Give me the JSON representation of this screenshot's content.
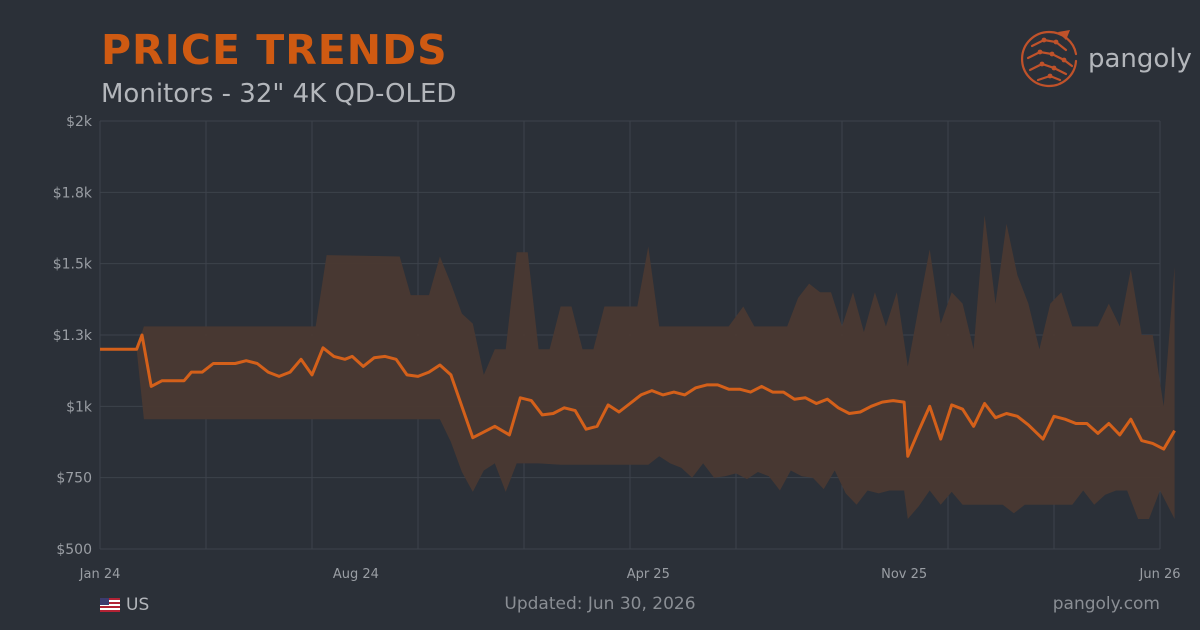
{
  "header": {
    "title": "PRICE TRENDS",
    "subtitle": "Monitors - 32\" 4K QD-OLED",
    "brand": "pangoly"
  },
  "footer": {
    "region": "US",
    "updated": "Updated: Jun 30, 2026",
    "site": "pangoly.com"
  },
  "colors": {
    "background": "#2b3038",
    "accent": "#d4601a",
    "band": "#4a3931",
    "grid": "#3d424b"
  },
  "icons": {
    "brand": "pangolin-logo-icon",
    "region": "us-flag-icon"
  },
  "chart_data": {
    "type": "line",
    "title": "PRICE TRENDS",
    "subtitle": "Monitors - 32\" 4K QD-OLED",
    "xlabel": "",
    "ylabel": "",
    "x_ticks": [
      {
        "label": "Jan 24",
        "x": 0
      },
      {
        "label": "Aug 24",
        "x": 7
      },
      {
        "label": "Apr 25",
        "x": 15
      },
      {
        "label": "Nov 25",
        "x": 22
      },
      {
        "label": "Jun 26",
        "x": 29
      }
    ],
    "y_ticks": [
      {
        "label": "$500",
        "value": 500
      },
      {
        "label": "$750",
        "value": 750
      },
      {
        "label": "$1k",
        "value": 1000
      },
      {
        "label": "$1.3k",
        "value": 1250
      },
      {
        "label": "$1.5k",
        "value": 1500
      },
      {
        "label": "$1.8k",
        "value": 1750
      },
      {
        "label": "$2k",
        "value": 2000
      }
    ],
    "xlim": [
      0,
      29
    ],
    "ylim": [
      500,
      2000
    ],
    "grid": true,
    "legend": "none",
    "series": [
      {
        "role": "average",
        "points": [
          [
            0,
            1200
          ],
          [
            0.7,
            1200
          ],
          [
            1.0,
            1200
          ],
          [
            1.15,
            1250
          ],
          [
            1.4,
            1070
          ],
          [
            1.7,
            1090
          ],
          [
            2.0,
            1090
          ],
          [
            2.3,
            1090
          ],
          [
            2.5,
            1120
          ],
          [
            2.8,
            1120
          ],
          [
            3.1,
            1150
          ],
          [
            3.4,
            1150
          ],
          [
            3.7,
            1150
          ],
          [
            4.0,
            1160
          ],
          [
            4.3,
            1150
          ],
          [
            4.6,
            1120
          ],
          [
            4.9,
            1105
          ],
          [
            5.2,
            1120
          ],
          [
            5.5,
            1165
          ],
          [
            5.8,
            1110
          ],
          [
            6.1,
            1205
          ],
          [
            6.4,
            1175
          ],
          [
            6.7,
            1165
          ],
          [
            6.9,
            1175
          ],
          [
            7.2,
            1140
          ],
          [
            7.5,
            1170
          ],
          [
            7.8,
            1175
          ],
          [
            8.1,
            1165
          ],
          [
            8.4,
            1110
          ],
          [
            8.7,
            1105
          ],
          [
            9.0,
            1120
          ],
          [
            9.3,
            1145
          ],
          [
            9.6,
            1110
          ],
          [
            10.2,
            890
          ],
          [
            10.8,
            930
          ],
          [
            11.2,
            900
          ],
          [
            11.5,
            1030
          ],
          [
            11.8,
            1020
          ],
          [
            12.1,
            970
          ],
          [
            12.4,
            975
          ],
          [
            12.7,
            995
          ],
          [
            13.0,
            985
          ],
          [
            13.3,
            920
          ],
          [
            13.6,
            930
          ],
          [
            13.9,
            1005
          ],
          [
            14.2,
            980
          ],
          [
            14.5,
            1010
          ],
          [
            14.8,
            1040
          ],
          [
            15.1,
            1055
          ],
          [
            15.4,
            1040
          ],
          [
            15.7,
            1050
          ],
          [
            16.0,
            1040
          ],
          [
            16.3,
            1065
          ],
          [
            16.6,
            1075
          ],
          [
            16.9,
            1075
          ],
          [
            17.2,
            1060
          ],
          [
            17.5,
            1060
          ],
          [
            17.8,
            1050
          ],
          [
            18.1,
            1070
          ],
          [
            18.4,
            1050
          ],
          [
            18.7,
            1050
          ],
          [
            19.0,
            1025
          ],
          [
            19.3,
            1030
          ],
          [
            19.6,
            1010
          ],
          [
            19.9,
            1025
          ],
          [
            20.2,
            995
          ],
          [
            20.5,
            975
          ],
          [
            20.8,
            980
          ],
          [
            21.1,
            1000
          ],
          [
            21.4,
            1015
          ],
          [
            21.7,
            1020
          ],
          [
            22.0,
            1015
          ],
          [
            22.1,
            825
          ],
          [
            22.4,
            915
          ],
          [
            22.7,
            1000
          ],
          [
            23.0,
            885
          ],
          [
            23.3,
            1005
          ],
          [
            23.6,
            990
          ],
          [
            23.9,
            930
          ],
          [
            24.2,
            1010
          ],
          [
            24.5,
            960
          ],
          [
            24.8,
            975
          ],
          [
            25.1,
            965
          ],
          [
            25.4,
            935
          ],
          [
            25.8,
            885
          ],
          [
            26.1,
            965
          ],
          [
            26.4,
            955
          ],
          [
            26.7,
            940
          ],
          [
            27.0,
            940
          ],
          [
            27.3,
            905
          ],
          [
            27.6,
            940
          ],
          [
            27.9,
            900
          ],
          [
            28.2,
            955
          ],
          [
            28.5,
            880
          ],
          [
            28.8,
            870
          ],
          [
            29.1,
            850
          ],
          [
            29.4,
            915
          ]
        ]
      },
      {
        "role": "max",
        "points": [
          [
            0,
            1200
          ],
          [
            1.0,
            1200
          ],
          [
            1.2,
            1280
          ],
          [
            5.9,
            1280
          ],
          [
            6.2,
            1530
          ],
          [
            8.2,
            1525
          ],
          [
            8.5,
            1390
          ],
          [
            9.0,
            1390
          ],
          [
            9.3,
            1525
          ],
          [
            9.6,
            1430
          ],
          [
            9.9,
            1325
          ],
          [
            10.2,
            1290
          ],
          [
            10.5,
            1110
          ],
          [
            10.8,
            1200
          ],
          [
            11.1,
            1200
          ],
          [
            11.4,
            1540
          ],
          [
            11.7,
            1540
          ],
          [
            12.0,
            1200
          ],
          [
            12.3,
            1200
          ],
          [
            12.6,
            1350
          ],
          [
            12.9,
            1350
          ],
          [
            13.2,
            1200
          ],
          [
            13.5,
            1200
          ],
          [
            13.8,
            1350
          ],
          [
            14.1,
            1350
          ],
          [
            14.4,
            1350
          ],
          [
            14.7,
            1350
          ],
          [
            15.0,
            1560
          ],
          [
            15.3,
            1280
          ],
          [
            15.6,
            1280
          ],
          [
            16.5,
            1280
          ],
          [
            17.2,
            1280
          ],
          [
            17.6,
            1350
          ],
          [
            17.9,
            1280
          ],
          [
            18.2,
            1280
          ],
          [
            18.8,
            1280
          ],
          [
            19.1,
            1380
          ],
          [
            19.4,
            1430
          ],
          [
            19.7,
            1400
          ],
          [
            20.0,
            1400
          ],
          [
            20.3,
            1280
          ],
          [
            20.6,
            1400
          ],
          [
            20.9,
            1260
          ],
          [
            21.2,
            1400
          ],
          [
            21.5,
            1280
          ],
          [
            21.8,
            1400
          ],
          [
            22.1,
            1140
          ],
          [
            22.4,
            1350
          ],
          [
            22.7,
            1550
          ],
          [
            23.0,
            1290
          ],
          [
            23.3,
            1400
          ],
          [
            23.6,
            1360
          ],
          [
            23.9,
            1200
          ],
          [
            24.2,
            1670
          ],
          [
            24.5,
            1360
          ],
          [
            24.8,
            1640
          ],
          [
            25.1,
            1460
          ],
          [
            25.4,
            1360
          ],
          [
            25.7,
            1200
          ],
          [
            26.0,
            1360
          ],
          [
            26.3,
            1400
          ],
          [
            26.6,
            1280
          ],
          [
            27.0,
            1280
          ],
          [
            27.3,
            1280
          ],
          [
            27.6,
            1360
          ],
          [
            27.9,
            1280
          ],
          [
            28.2,
            1480
          ],
          [
            28.5,
            1250
          ],
          [
            28.8,
            1250
          ],
          [
            29.1,
            1000
          ],
          [
            29.4,
            1490
          ]
        ]
      },
      {
        "role": "min",
        "points": [
          [
            0,
            1200
          ],
          [
            1.0,
            1200
          ],
          [
            1.2,
            955
          ],
          [
            5.9,
            955
          ],
          [
            8.2,
            955
          ],
          [
            9.3,
            955
          ],
          [
            9.6,
            875
          ],
          [
            9.9,
            770
          ],
          [
            10.2,
            700
          ],
          [
            10.5,
            775
          ],
          [
            10.8,
            800
          ],
          [
            11.1,
            700
          ],
          [
            11.4,
            800
          ],
          [
            12.0,
            800
          ],
          [
            12.6,
            795
          ],
          [
            15.0,
            795
          ],
          [
            15.3,
            825
          ],
          [
            15.6,
            800
          ],
          [
            15.9,
            785
          ],
          [
            16.2,
            750
          ],
          [
            16.5,
            800
          ],
          [
            16.8,
            750
          ],
          [
            17.1,
            755
          ],
          [
            17.4,
            765
          ],
          [
            17.7,
            745
          ],
          [
            18.0,
            770
          ],
          [
            18.3,
            755
          ],
          [
            18.6,
            705
          ],
          [
            18.9,
            775
          ],
          [
            19.2,
            755
          ],
          [
            19.5,
            750
          ],
          [
            19.8,
            710
          ],
          [
            20.1,
            775
          ],
          [
            20.4,
            695
          ],
          [
            20.7,
            655
          ],
          [
            21.0,
            705
          ],
          [
            21.3,
            695
          ],
          [
            21.6,
            705
          ],
          [
            22.0,
            705
          ],
          [
            22.1,
            605
          ],
          [
            22.4,
            650
          ],
          [
            22.7,
            705
          ],
          [
            23.0,
            655
          ],
          [
            23.3,
            700
          ],
          [
            23.6,
            655
          ],
          [
            24.0,
            655
          ],
          [
            24.4,
            655
          ],
          [
            24.7,
            655
          ],
          [
            25.0,
            625
          ],
          [
            25.3,
            655
          ],
          [
            25.6,
            655
          ],
          [
            26.6,
            655
          ],
          [
            26.9,
            705
          ],
          [
            27.2,
            655
          ],
          [
            27.5,
            690
          ],
          [
            27.8,
            705
          ],
          [
            28.1,
            705
          ],
          [
            28.4,
            605
          ],
          [
            28.7,
            605
          ],
          [
            29.0,
            705
          ],
          [
            29.4,
            605
          ]
        ]
      }
    ]
  }
}
